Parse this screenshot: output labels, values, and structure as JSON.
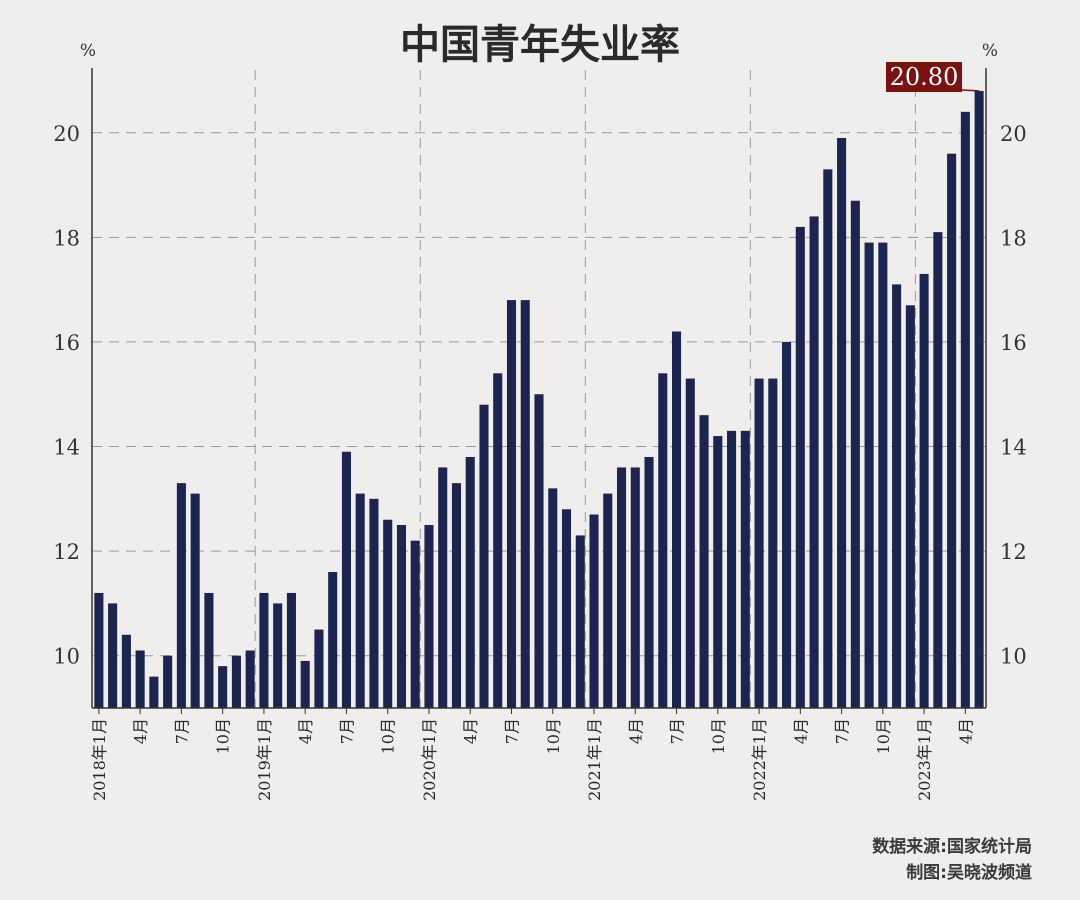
{
  "chart_data": {
    "type": "bar",
    "title": "中国青年失业率",
    "unit_left": "%",
    "unit_right": "%",
    "ylim": [
      9,
      21.2
    ],
    "yticks": [
      10,
      12,
      14,
      16,
      18,
      20
    ],
    "grid": "horizontal dashed + vertical dashed at year starts",
    "bar_color": "#1c2550",
    "highlight_color": "#7a1212",
    "values": [
      11.2,
      11.0,
      10.4,
      10.1,
      9.6,
      10.0,
      13.3,
      13.1,
      11.2,
      9.8,
      10.0,
      10.1,
      11.2,
      11.0,
      11.2,
      9.9,
      10.5,
      11.6,
      13.9,
      13.1,
      13.0,
      12.6,
      12.5,
      12.2,
      12.5,
      13.6,
      13.3,
      13.8,
      14.8,
      15.4,
      16.8,
      16.8,
      15.0,
      13.2,
      12.8,
      12.3,
      12.7,
      13.1,
      13.6,
      13.6,
      13.8,
      15.4,
      16.2,
      15.3,
      14.6,
      14.2,
      14.3,
      14.3,
      15.3,
      15.3,
      16.0,
      18.2,
      18.4,
      19.3,
      19.9,
      18.7,
      17.9,
      17.9,
      17.1,
      16.7,
      17.3,
      18.1,
      19.6,
      20.4,
      20.8
    ],
    "x_labels": [
      {
        "index": 0,
        "text": "2018年1月"
      },
      {
        "index": 3,
        "text": "4月"
      },
      {
        "index": 6,
        "text": "7月"
      },
      {
        "index": 9,
        "text": "10月"
      },
      {
        "index": 12,
        "text": "2019年1月"
      },
      {
        "index": 15,
        "text": "4月"
      },
      {
        "index": 18,
        "text": "7月"
      },
      {
        "index": 21,
        "text": "10月"
      },
      {
        "index": 24,
        "text": "2020年1月"
      },
      {
        "index": 27,
        "text": "4月"
      },
      {
        "index": 30,
        "text": "7月"
      },
      {
        "index": 33,
        "text": "10月"
      },
      {
        "index": 36,
        "text": "2021年1月"
      },
      {
        "index": 39,
        "text": "4月"
      },
      {
        "index": 42,
        "text": "7月"
      },
      {
        "index": 45,
        "text": "10月"
      },
      {
        "index": 48,
        "text": "2022年1月"
      },
      {
        "index": 51,
        "text": "4月"
      },
      {
        "index": 54,
        "text": "7月"
      },
      {
        "index": 57,
        "text": "10月"
      },
      {
        "index": 60,
        "text": "2023年1月"
      },
      {
        "index": 63,
        "text": "4月"
      }
    ],
    "year_start_indices": [
      12,
      24,
      36,
      48,
      60
    ],
    "callout": {
      "index": 64,
      "text": "20.80"
    }
  },
  "source_line": "数据来源:国家统计局",
  "credit_line": "制图:吴晓波频道"
}
